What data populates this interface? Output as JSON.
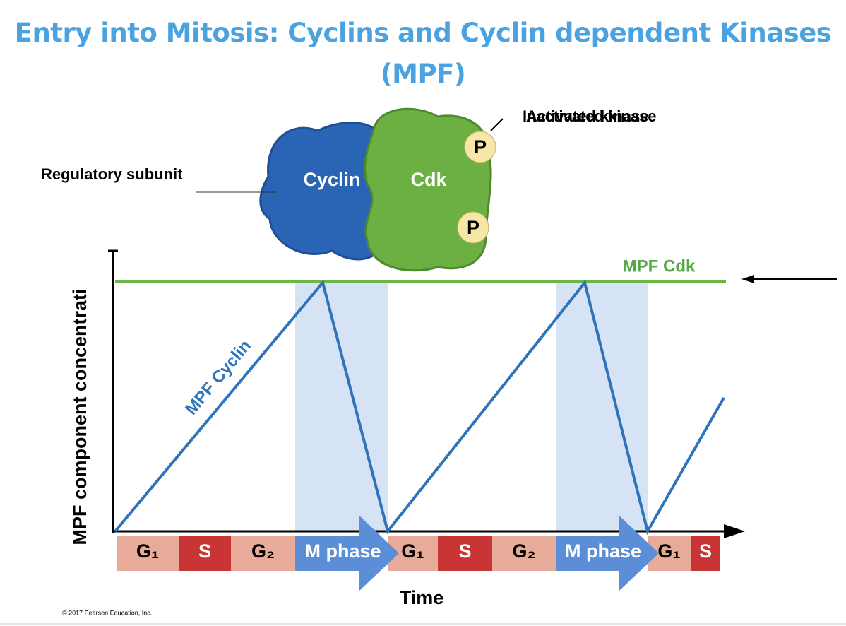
{
  "title": "Entry into Mitosis: Cyclins and Cyclin dependent Kinases (MPF)",
  "protein": {
    "regulatory_subunit": "Regulatory subunit",
    "cyclin": "Cyclin",
    "cdk": "Cdk",
    "phosphates": [
      "P",
      "P"
    ],
    "kinase_states": [
      "Inactivated kinase",
      "Activated kinase"
    ]
  },
  "graph": {
    "cdk_label": "MPF Cdk",
    "cyclin_label": "MPF Cyclin",
    "y_axis": "MPF component concentrati",
    "x_axis": "Time",
    "phases": [
      "G₁",
      "S",
      "G₂",
      "M phase",
      "G₁",
      "S",
      "G₂",
      "M phase",
      "G₁",
      "S"
    ]
  },
  "copyright": "© 2017 Pearson Education, Inc."
}
